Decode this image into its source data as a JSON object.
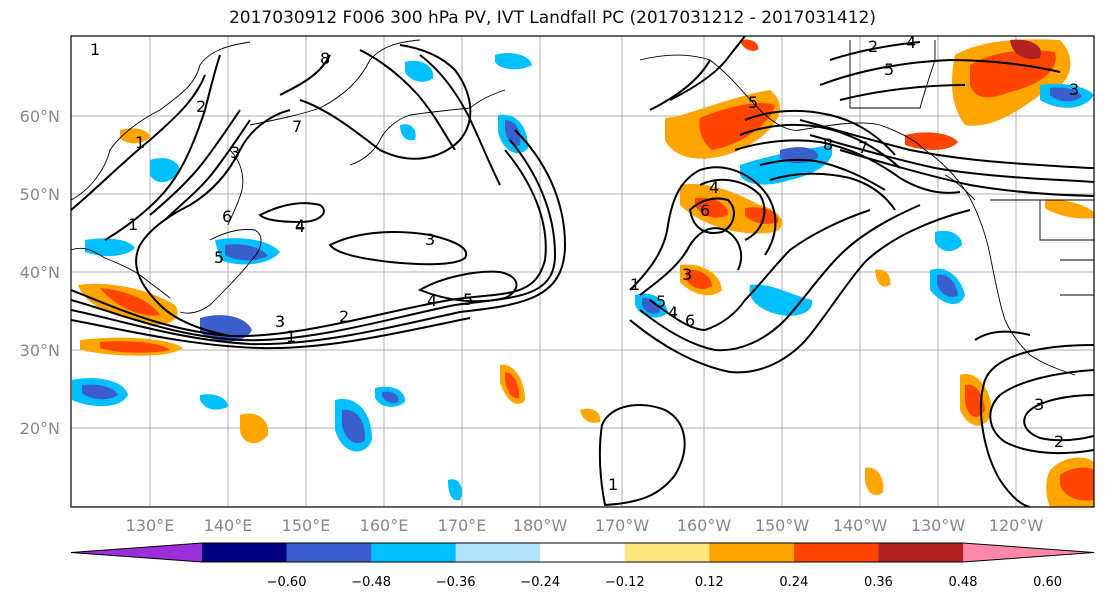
{
  "title": "2017030912 F006 300 hPa PV, IVT Landfall PC (2017031212 - 2017031412)",
  "lat_labels": [
    "60°N",
    "50°N",
    "40°N",
    "30°N",
    "20°N"
  ],
  "lon_labels": [
    "130°E",
    "140°E",
    "150°E",
    "160°E",
    "170°E",
    "180°W",
    "170°W",
    "160°W",
    "150°W",
    "140°W",
    "130°W",
    "120°W"
  ],
  "colorbar": {
    "colors": [
      "#9b30d9",
      "#000080",
      "#3a5fcd",
      "#00bfff",
      "#b3e5fc",
      "#ffffff",
      "#ffe680",
      "#ffa500",
      "#ff4500",
      "#b22222",
      "#ff88aa"
    ],
    "tick_labels": [
      "−0.60",
      "−0.48",
      "−0.36",
      "−0.24",
      "−0.12",
      "0.12",
      "0.24",
      "0.36",
      "0.48",
      "0.60"
    ]
  },
  "contour_labels": [
    "2",
    "1",
    "5",
    "4",
    "3",
    "6",
    "7",
    "8",
    "3",
    "4",
    "5",
    "2",
    "3",
    "1",
    "5",
    "4",
    "3",
    "5",
    "4",
    "6",
    "8",
    "7",
    "6",
    "5",
    "4",
    "1",
    "1",
    "3",
    "2",
    "2",
    "3",
    "1",
    "4",
    "1"
  ]
}
